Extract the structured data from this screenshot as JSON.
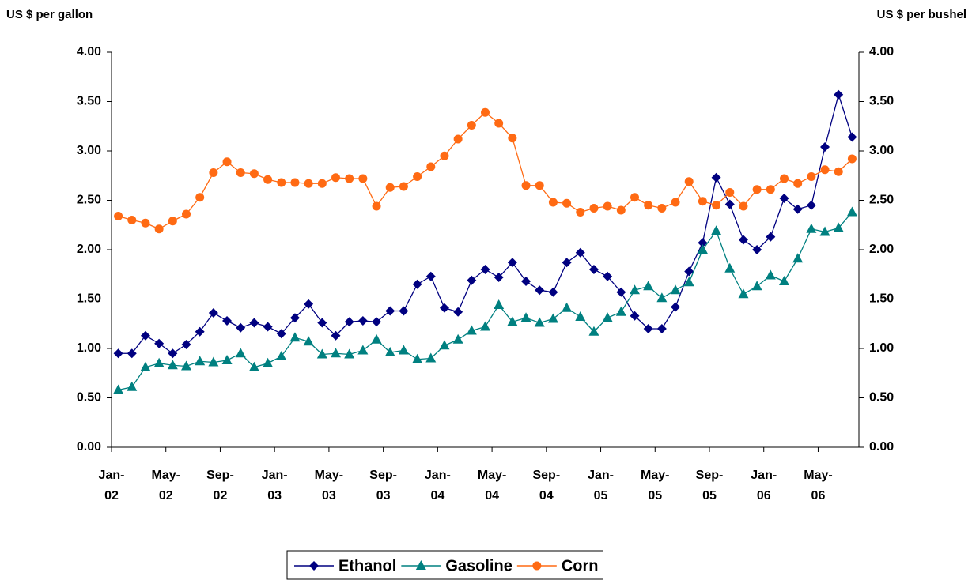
{
  "chart_data": {
    "type": "line",
    "y_label": "US $ per gallon",
    "y2_label": "US $ per bushel",
    "categories": [
      "Jan-02",
      null,
      null,
      null,
      "May-02",
      null,
      null,
      null,
      "Sep-02",
      null,
      null,
      null,
      "Jan-03",
      null,
      null,
      null,
      "May-03",
      null,
      null,
      null,
      "Sep-03",
      null,
      null,
      null,
      "Jan-04",
      null,
      null,
      null,
      "May-04",
      null,
      null,
      null,
      "Sep-04",
      null,
      null,
      null,
      "Jan-05",
      null,
      null,
      null,
      "May-05",
      null,
      null,
      null,
      "Sep-05",
      null,
      null,
      null,
      "Jan-06",
      null,
      null,
      null,
      "May-06",
      null,
      null
    ],
    "series": [
      {
        "name": "Ethanol",
        "color": "#000080",
        "marker": "diamond",
        "values": [
          0.95,
          0.95,
          1.13,
          1.05,
          0.95,
          1.04,
          1.17,
          1.36,
          1.28,
          1.21,
          1.26,
          1.22,
          1.15,
          1.31,
          1.45,
          1.26,
          1.13,
          1.27,
          1.28,
          1.27,
          1.38,
          1.38,
          1.65,
          1.73,
          1.41,
          1.37,
          1.69,
          1.8,
          1.72,
          1.87,
          1.68,
          1.59,
          1.57,
          1.87,
          1.97,
          1.8,
          1.73,
          1.57,
          1.33,
          1.2,
          1.2,
          1.42,
          1.78,
          2.07,
          2.73,
          2.46,
          2.1,
          2.0,
          2.13,
          2.52,
          2.41,
          2.45,
          3.04,
          3.57,
          3.14
        ]
      },
      {
        "name": "Gasoline",
        "color": "#008080",
        "marker": "triangle",
        "values": [
          0.58,
          0.61,
          0.81,
          0.85,
          0.83,
          0.82,
          0.87,
          0.86,
          0.88,
          0.95,
          0.81,
          0.85,
          0.92,
          1.11,
          1.07,
          0.94,
          0.95,
          0.94,
          0.98,
          1.09,
          0.96,
          0.98,
          0.89,
          0.9,
          1.03,
          1.09,
          1.18,
          1.22,
          1.44,
          1.27,
          1.31,
          1.26,
          1.3,
          1.41,
          1.32,
          1.17,
          1.31,
          1.37,
          1.59,
          1.63,
          1.51,
          1.59,
          1.67,
          2.0,
          2.19,
          1.81,
          1.55,
          1.63,
          1.74,
          1.68,
          1.91,
          2.21,
          2.18,
          2.22,
          2.38
        ]
      },
      {
        "name": "Corn",
        "color": "#ff6a13",
        "marker": "circle",
        "axis": "y2",
        "values": [
          2.34,
          2.3,
          2.27,
          2.21,
          2.29,
          2.36,
          2.53,
          2.78,
          2.89,
          2.78,
          2.77,
          2.71,
          2.68,
          2.68,
          2.67,
          2.67,
          2.73,
          2.72,
          2.72,
          2.44,
          2.63,
          2.64,
          2.74,
          2.84,
          2.95,
          3.12,
          3.26,
          3.39,
          3.28,
          3.13,
          2.65,
          2.65,
          2.48,
          2.47,
          2.38,
          2.42,
          2.44,
          2.4,
          2.53,
          2.45,
          2.42,
          2.48,
          2.69,
          2.49,
          2.45,
          2.58,
          2.44,
          2.61,
          2.61,
          2.72,
          2.67,
          2.74,
          2.81,
          2.79,
          2.92
        ]
      }
    ],
    "ylim": [
      0,
      4
    ],
    "yticks": [
      {
        "value": 0,
        "label": "0.00"
      },
      {
        "value": 0.5,
        "label": "0.50"
      },
      {
        "value": 1,
        "label": "1.00"
      },
      {
        "value": 1.5,
        "label": "1.50"
      },
      {
        "value": 2,
        "label": "2.00"
      },
      {
        "value": 2.5,
        "label": "2.50"
      },
      {
        "value": 3,
        "label": "3.00"
      },
      {
        "value": 3.5,
        "label": "3.50"
      },
      {
        "value": 4,
        "label": "4.00"
      }
    ],
    "y2lim": [
      0,
      4
    ],
    "y2ticks": [
      {
        "value": 0,
        "label": "0.00"
      },
      {
        "value": 0.5,
        "label": "0.50"
      },
      {
        "value": 1,
        "label": "1.00"
      },
      {
        "value": 1.5,
        "label": "1.50"
      },
      {
        "value": 2,
        "label": "2.00"
      },
      {
        "value": 2.5,
        "label": "2.50"
      },
      {
        "value": 3,
        "label": "3.00"
      },
      {
        "value": 3.5,
        "label": "3.50"
      },
      {
        "value": 4,
        "label": "4.00"
      }
    ],
    "grid": false,
    "legend": "bottom"
  }
}
